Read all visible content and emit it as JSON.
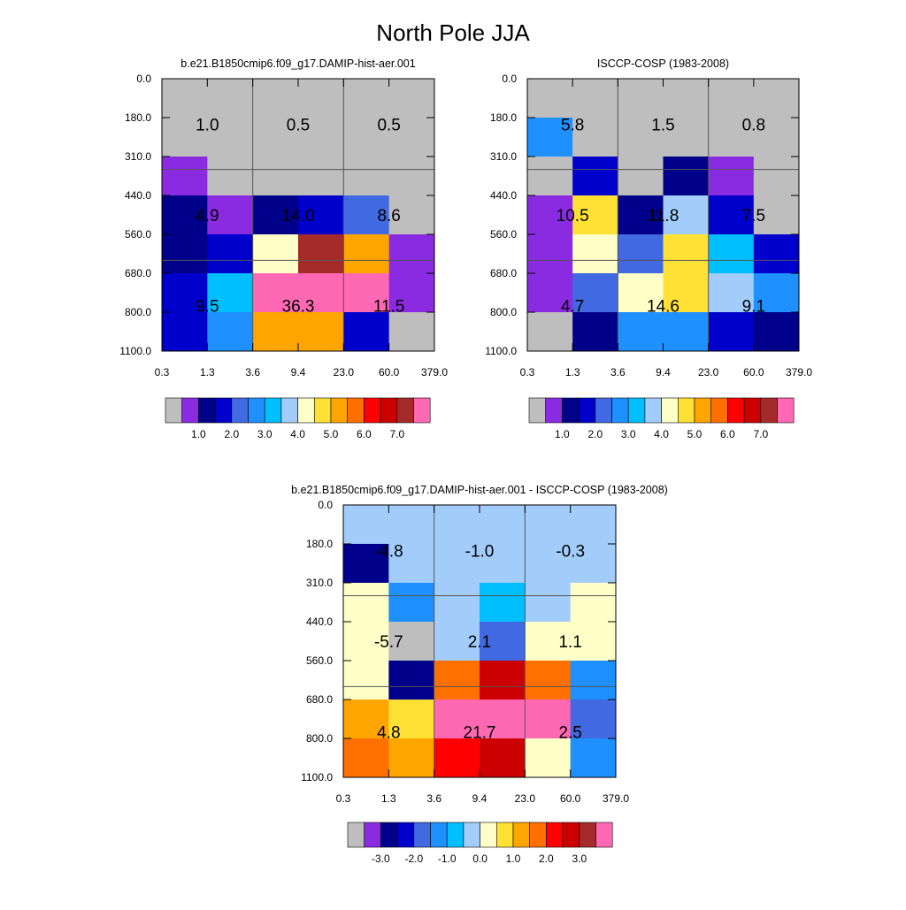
{
  "title": "North Pole JJA",
  "colors": {
    "abs_palette": [
      "#bebebe",
      "#8a2be2",
      "#00008b",
      "#0000cd",
      "#4169e1",
      "#1e90ff",
      "#00bfff",
      "#a2cdfa",
      "#ffffc8",
      "#ffe135",
      "#ffa500",
      "#ff7000",
      "#ff0000",
      "#cd0000",
      "#a52a2a",
      "#ff69b4"
    ],
    "diff_palette": [
      "#bebebe",
      "#8a2be2",
      "#00008b",
      "#0000cd",
      "#4169e1",
      "#1e90ff",
      "#00bfff",
      "#a2cdfa",
      "#ffffc8",
      "#ffe135",
      "#ffa500",
      "#ff7000",
      "#ff0000",
      "#cd0000",
      "#a52a2a",
      "#ff69b4"
    ]
  },
  "chart_data": [
    {
      "type": "heatmap",
      "title": "b.e21.B1850cmip6.f09_g17.DAMIP-hist-aer.001",
      "x_tick_labels": [
        "0.3",
        "1.3",
        "3.6",
        "9.4",
        "23.0",
        "60.0",
        "379.0"
      ],
      "y_tick_labels": [
        "0.0",
        "180.0",
        "310.0",
        "440.0",
        "560.0",
        "680.0",
        "800.0",
        "1100.0"
      ],
      "cells": [
        [
          0,
          0,
          0,
          0,
          0,
          0
        ],
        [
          0,
          0,
          0,
          0,
          0,
          0
        ],
        [
          1,
          0,
          0,
          0,
          0,
          0
        ],
        [
          2,
          1,
          2,
          3,
          4,
          0
        ],
        [
          2,
          3,
          8,
          14,
          10,
          1
        ],
        [
          3,
          6,
          15,
          15,
          15,
          1
        ],
        [
          3,
          5,
          10,
          10,
          3,
          0
        ]
      ],
      "summary_values": [
        [
          "1.0",
          "0.5",
          "0.5"
        ],
        [
          "4.9",
          "14.0",
          "8.6"
        ],
        [
          "9.5",
          "36.3",
          "11.5"
        ]
      ],
      "colorbar_labels": [
        "1.0",
        "2.0",
        "3.0",
        "4.0",
        "5.0",
        "6.0",
        "7.0"
      ]
    },
    {
      "type": "heatmap",
      "title": "ISCCP-COSP (1983-2008)",
      "x_tick_labels": [
        "0.3",
        "1.3",
        "3.6",
        "9.4",
        "23.0",
        "60.0",
        "379.0"
      ],
      "y_tick_labels": [
        "0.0",
        "180.0",
        "310.0",
        "440.0",
        "560.0",
        "680.0",
        "800.0",
        "1100.0"
      ],
      "cells": [
        [
          0,
          0,
          0,
          0,
          0,
          0
        ],
        [
          5,
          0,
          0,
          0,
          0,
          0
        ],
        [
          0,
          3,
          0,
          2,
          1,
          0
        ],
        [
          1,
          9,
          2,
          7,
          3,
          0
        ],
        [
          1,
          8,
          4,
          9,
          6,
          3
        ],
        [
          1,
          4,
          8,
          9,
          7,
          5
        ],
        [
          0,
          2,
          5,
          5,
          3,
          2
        ]
      ],
      "summary_values": [
        [
          "5.8",
          "1.5",
          "0.8"
        ],
        [
          "10.5",
          "11.8",
          "7.5"
        ],
        [
          "4.7",
          "14.6",
          "9.1"
        ]
      ],
      "colorbar_labels": [
        "1.0",
        "2.0",
        "3.0",
        "4.0",
        "5.0",
        "6.0",
        "7.0"
      ]
    },
    {
      "type": "heatmap",
      "title": "b.e21.B1850cmip6.f09_g17.DAMIP-hist-aer.001 - ISCCP-COSP (1983-2008)",
      "x_tick_labels": [
        "0.3",
        "1.3",
        "3.6",
        "9.4",
        "23.0",
        "60.0",
        "379.0"
      ],
      "y_tick_labels": [
        "0.0",
        "180.0",
        "310.0",
        "440.0",
        "560.0",
        "680.0",
        "800.0",
        "1100.0"
      ],
      "cells": [
        [
          7,
          7,
          7,
          7,
          7,
          7
        ],
        [
          2,
          7,
          7,
          7,
          7,
          7
        ],
        [
          8,
          5,
          7,
          6,
          7,
          8
        ],
        [
          8,
          0,
          7,
          4,
          8,
          8
        ],
        [
          8,
          2,
          11,
          13,
          11,
          5
        ],
        [
          10,
          9,
          15,
          15,
          15,
          4
        ],
        [
          11,
          10,
          12,
          13,
          8,
          5
        ]
      ],
      "summary_values": [
        [
          "-4.8",
          "-1.0",
          "-0.3"
        ],
        [
          "-5.7",
          "2.1",
          "1.1"
        ],
        [
          "4.8",
          "21.7",
          "2.5"
        ]
      ],
      "colorbar_labels": [
        "-3.0",
        "-2.0",
        "-1.0",
        "0.0",
        "1.0",
        "2.0",
        "3.0"
      ]
    }
  ]
}
